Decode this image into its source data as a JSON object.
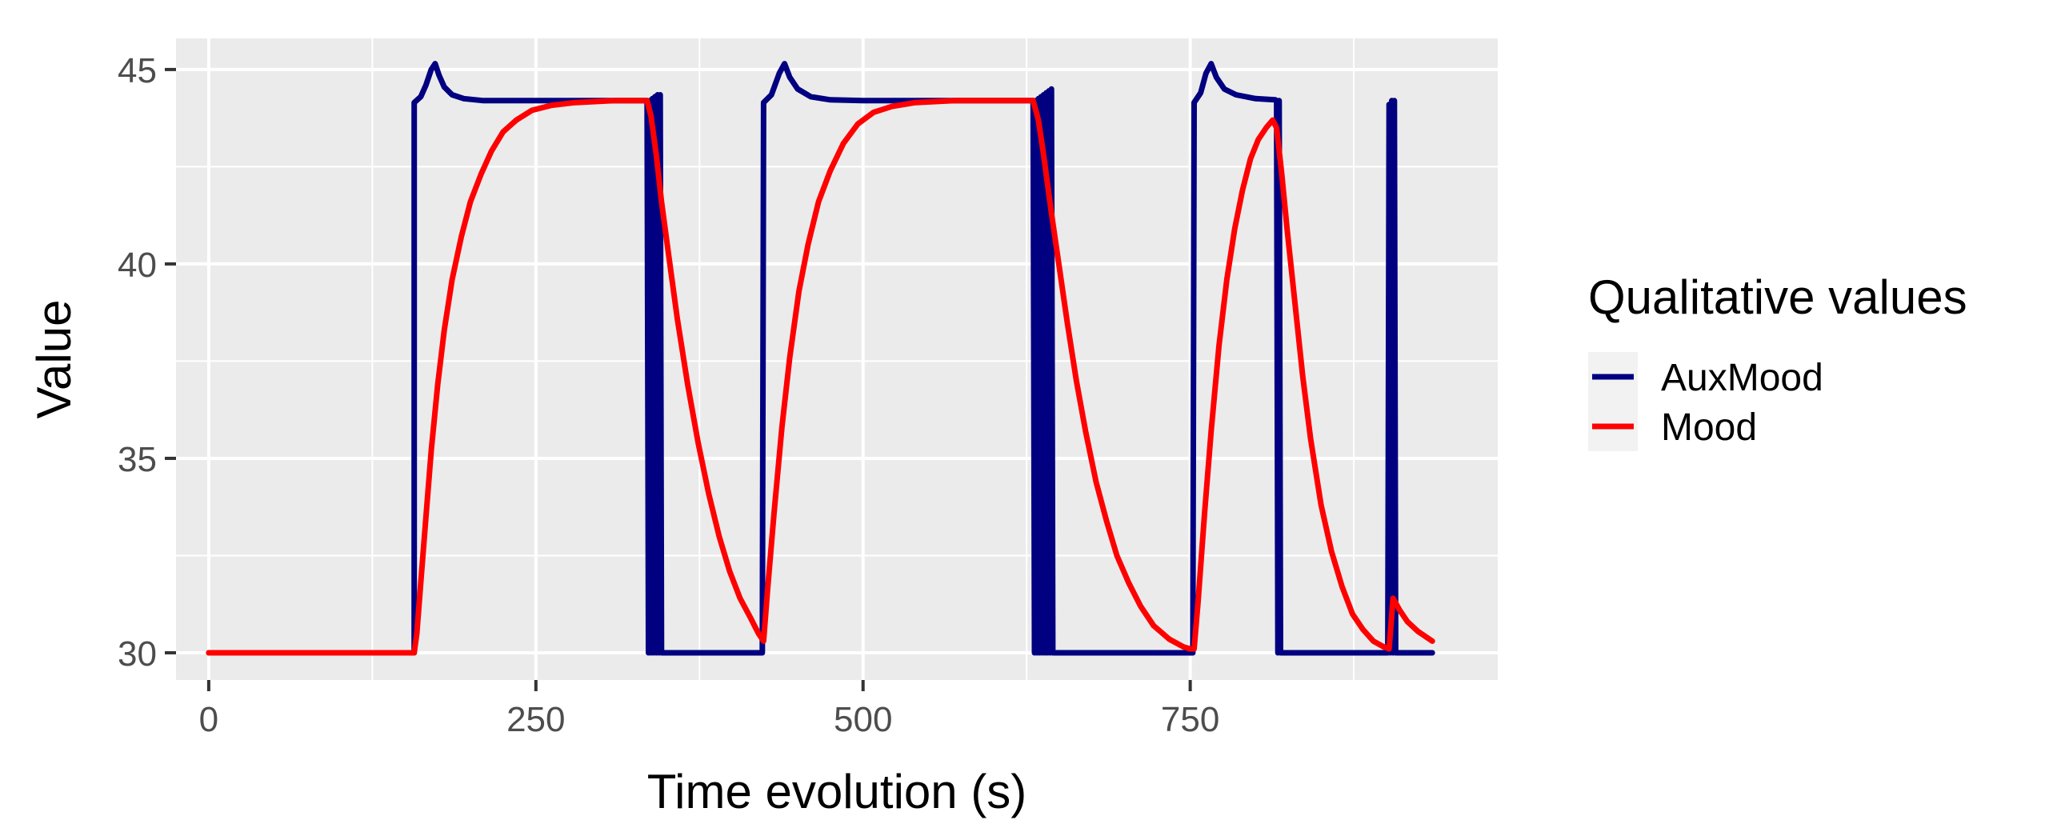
{
  "chart_data": {
    "type": "line",
    "title": "",
    "xlabel": "Time evolution (s)",
    "ylabel": "Value",
    "xlim": [
      -25,
      985
    ],
    "ylim": [
      29.3,
      45.8
    ],
    "x_ticks": [
      0,
      250,
      500,
      750
    ],
    "x_tick_labels": [
      "0",
      "250",
      "500",
      "750"
    ],
    "y_ticks": [
      30,
      35,
      40,
      45
    ],
    "y_tick_labels": [
      "30",
      "35",
      "40",
      "45"
    ],
    "grid": true,
    "legend": {
      "title": "Qualitative values",
      "position": "right"
    },
    "series": [
      {
        "name": "AuxMood",
        "color": "#000080",
        "points": [
          [
            0,
            30
          ],
          [
            157,
            30
          ],
          [
            157,
            44.15
          ],
          [
            162,
            44.3
          ],
          [
            166,
            44.6
          ],
          [
            170,
            45.0
          ],
          [
            173,
            45.15
          ],
          [
            176,
            44.85
          ],
          [
            180,
            44.55
          ],
          [
            186,
            44.35
          ],
          [
            195,
            44.25
          ],
          [
            210,
            44.2
          ],
          [
            250,
            44.2
          ],
          [
            300,
            44.2
          ],
          [
            335,
            44.2
          ],
          [
            336,
            30
          ],
          [
            337,
            44.2
          ],
          [
            338,
            30
          ],
          [
            339,
            44.25
          ],
          [
            340,
            30
          ],
          [
            341,
            44.3
          ],
          [
            342,
            30
          ],
          [
            343,
            44.35
          ],
          [
            344,
            30
          ],
          [
            345,
            44.35
          ],
          [
            346,
            30
          ],
          [
            420,
            30
          ],
          [
            423,
            30
          ],
          [
            424,
            44.15
          ],
          [
            430,
            44.35
          ],
          [
            436,
            44.9
          ],
          [
            440,
            45.15
          ],
          [
            444,
            44.8
          ],
          [
            450,
            44.5
          ],
          [
            460,
            44.3
          ],
          [
            475,
            44.22
          ],
          [
            500,
            44.2
          ],
          [
            600,
            44.2
          ],
          [
            630,
            44.2
          ],
          [
            631,
            30
          ],
          [
            632,
            44.2
          ],
          [
            633,
            30
          ],
          [
            634,
            44.25
          ],
          [
            635,
            30
          ],
          [
            636,
            44.3
          ],
          [
            637,
            30
          ],
          [
            638,
            44.35
          ],
          [
            639,
            30
          ],
          [
            640,
            44.4
          ],
          [
            641,
            30
          ],
          [
            642,
            44.45
          ],
          [
            643,
            30
          ],
          [
            644,
            44.5
          ],
          [
            645,
            30
          ],
          [
            750,
            30
          ],
          [
            752,
            30
          ],
          [
            753,
            44.15
          ],
          [
            758,
            44.4
          ],
          [
            762,
            44.9
          ],
          [
            766,
            45.15
          ],
          [
            770,
            44.8
          ],
          [
            776,
            44.5
          ],
          [
            785,
            44.35
          ],
          [
            800,
            44.25
          ],
          [
            815,
            44.22
          ],
          [
            816,
            44.2
          ],
          [
            817,
            30
          ],
          [
            818,
            44.2
          ],
          [
            819,
            30
          ],
          [
            890,
            30
          ],
          [
            901,
            30
          ],
          [
            902,
            44.1
          ],
          [
            903,
            30
          ],
          [
            904,
            44.2
          ],
          [
            905,
            30
          ],
          [
            906,
            44.2
          ],
          [
            907,
            30
          ],
          [
            935,
            30
          ]
        ]
      },
      {
        "name": "Mood",
        "color": "#ff0000",
        "points": [
          [
            0,
            30
          ],
          [
            157,
            30
          ],
          [
            159,
            30.5
          ],
          [
            162,
            31.8
          ],
          [
            166,
            33.5
          ],
          [
            170,
            35.2
          ],
          [
            175,
            36.9
          ],
          [
            180,
            38.3
          ],
          [
            186,
            39.6
          ],
          [
            193,
            40.7
          ],
          [
            200,
            41.6
          ],
          [
            208,
            42.3
          ],
          [
            216,
            42.9
          ],
          [
            225,
            43.4
          ],
          [
            235,
            43.7
          ],
          [
            247,
            43.95
          ],
          [
            262,
            44.08
          ],
          [
            280,
            44.15
          ],
          [
            310,
            44.2
          ],
          [
            335,
            44.2
          ],
          [
            338,
            43.8
          ],
          [
            342,
            42.8
          ],
          [
            346,
            41.6
          ],
          [
            352,
            40.1
          ],
          [
            358,
            38.6
          ],
          [
            366,
            36.9
          ],
          [
            374,
            35.4
          ],
          [
            382,
            34.1
          ],
          [
            390,
            33.0
          ],
          [
            398,
            32.1
          ],
          [
            406,
            31.4
          ],
          [
            414,
            30.9
          ],
          [
            420,
            30.5
          ],
          [
            424,
            30.3
          ],
          [
            427,
            31.6
          ],
          [
            432,
            33.6
          ],
          [
            438,
            35.8
          ],
          [
            444,
            37.6
          ],
          [
            451,
            39.3
          ],
          [
            458,
            40.5
          ],
          [
            466,
            41.6
          ],
          [
            475,
            42.4
          ],
          [
            485,
            43.1
          ],
          [
            496,
            43.6
          ],
          [
            508,
            43.9
          ],
          [
            522,
            44.05
          ],
          [
            540,
            44.15
          ],
          [
            570,
            44.2
          ],
          [
            630,
            44.2
          ],
          [
            634,
            43.7
          ],
          [
            638,
            42.8
          ],
          [
            644,
            41.3
          ],
          [
            650,
            39.9
          ],
          [
            656,
            38.5
          ],
          [
            663,
            37.0
          ],
          [
            670,
            35.7
          ],
          [
            678,
            34.4
          ],
          [
            686,
            33.4
          ],
          [
            694,
            32.5
          ],
          [
            703,
            31.8
          ],
          [
            712,
            31.2
          ],
          [
            722,
            30.7
          ],
          [
            734,
            30.35
          ],
          [
            745,
            30.15
          ],
          [
            750,
            30.1
          ],
          [
            753,
            30.1
          ],
          [
            756,
            31.3
          ],
          [
            761,
            33.6
          ],
          [
            766,
            35.7
          ],
          [
            772,
            37.9
          ],
          [
            778,
            39.6
          ],
          [
            784,
            40.9
          ],
          [
            790,
            41.9
          ],
          [
            796,
            42.7
          ],
          [
            802,
            43.2
          ],
          [
            808,
            43.5
          ],
          [
            813,
            43.7
          ],
          [
            816,
            43.5
          ],
          [
            820,
            42.3
          ],
          [
            824,
            40.9
          ],
          [
            830,
            39.0
          ],
          [
            836,
            37.1
          ],
          [
            842,
            35.5
          ],
          [
            850,
            33.8
          ],
          [
            858,
            32.6
          ],
          [
            866,
            31.7
          ],
          [
            874,
            31.0
          ],
          [
            882,
            30.6
          ],
          [
            890,
            30.3
          ],
          [
            898,
            30.15
          ],
          [
            902,
            30.1
          ],
          [
            905,
            31.4
          ],
          [
            910,
            31.1
          ],
          [
            916,
            30.8
          ],
          [
            924,
            30.55
          ],
          [
            935,
            30.3
          ]
        ]
      }
    ]
  }
}
